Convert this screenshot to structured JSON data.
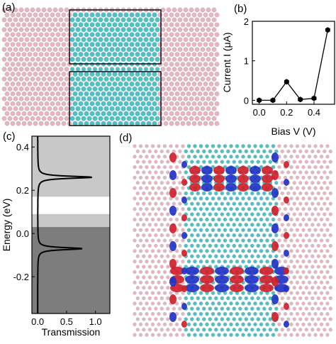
{
  "panels": {
    "a": "(a)",
    "b": "(b)",
    "c": "(c)",
    "d": "(d)"
  },
  "colors": {
    "boron_nitride_atom": "#e8b4bf",
    "carbon_atom": "#4fc1c4",
    "hydrogen_atom": "#f2f2f2",
    "orbital_positive": "#cf1f2a",
    "orbital_negative": "#2233c4",
    "gap_band_light": "#c8c8c8",
    "gap_band_dark": "#7d7d7d"
  },
  "chart_data": [
    {
      "panel": "b",
      "type": "line",
      "xlabel": "Bias V (V)",
      "ylabel": "Current I (μA)",
      "x": [
        0.0,
        0.1,
        0.2,
        0.3,
        0.4,
        0.5
      ],
      "series": [
        {
          "values": [
            0.0,
            0.0,
            0.47,
            0.02,
            0.05,
            1.78
          ]
        }
      ],
      "xlim": [
        -0.05,
        0.55
      ],
      "ylim": [
        -0.1,
        2.0
      ],
      "xticks": [
        "0.0",
        "0.2",
        "0.4"
      ],
      "yticks": [
        "0",
        "1",
        "2"
      ],
      "grid": false
    },
    {
      "panel": "c",
      "type": "line",
      "xlabel": "Transmission",
      "ylabel": "Energy (eV)",
      "xlim": [
        -0.1,
        1.25
      ],
      "ylim": [
        -0.37,
        0.45
      ],
      "xticks": [
        "0.0",
        "0.5",
        "1.0"
      ],
      "yticks": [
        "-0.2",
        "0.0",
        "0.2",
        "0.4"
      ],
      "peaks": [
        {
          "energy": 0.26,
          "transmission": 0.95
        },
        {
          "energy": -0.07,
          "transmission": 0.78
        }
      ],
      "bands": [
        {
          "from": 0.09,
          "to": 0.45,
          "shade": "light"
        },
        {
          "from": 0.03,
          "to": 0.09,
          "shade": "light"
        },
        {
          "from": -0.37,
          "to": 0.03,
          "shade": "dark"
        }
      ],
      "white_window": [
        0.17,
        0.25
      ],
      "grid": false
    }
  ]
}
